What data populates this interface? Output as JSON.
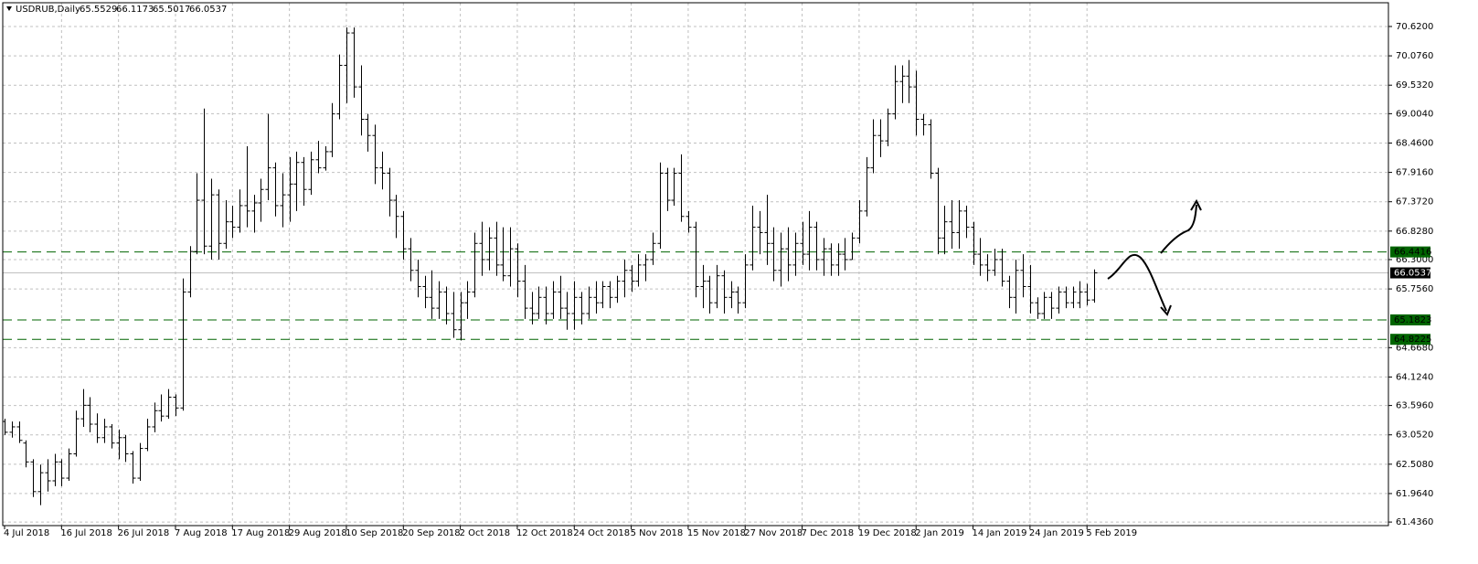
{
  "chart_data": {
    "type": "ohlc",
    "symbol": "USDRUB,Daily",
    "color": "#000000",
    "grid": true,
    "grid_color": "#c0c0c0",
    "hline_color": "#006400",
    "hlines": [
      66.4416,
      65.1823,
      64.8225
    ],
    "ylim": [
      61.37,
      71.06
    ],
    "yticks": [
      {
        "value": 70.62,
        "label": "70.6200"
      },
      {
        "value": 70.076,
        "label": "70.0760"
      },
      {
        "value": 69.532,
        "label": "69.5320"
      },
      {
        "value": 69.004,
        "label": "69.0040"
      },
      {
        "value": 68.46,
        "label": "68.4600"
      },
      {
        "value": 67.916,
        "label": "67.9160"
      },
      {
        "value": 67.372,
        "label": "67.3720"
      },
      {
        "value": 66.828,
        "label": "66.8280"
      },
      {
        "value": 66.3,
        "label": "66.3000"
      },
      {
        "value": 65.756,
        "label": "65.7560"
      },
      {
        "value": 64.668,
        "label": "64.6680"
      },
      {
        "value": 64.124,
        "label": "64.1240"
      },
      {
        "value": 63.596,
        "label": "63.5960"
      },
      {
        "value": 63.052,
        "label": "63.0520"
      },
      {
        "value": 62.508,
        "label": "62.5080"
      },
      {
        "value": 61.964,
        "label": "61.9640"
      },
      {
        "value": 61.436,
        "label": "61.4360"
      }
    ],
    "categories": [
      "4 Jul 2018",
      null,
      null,
      null,
      null,
      null,
      null,
      null,
      "16 Jul 2018",
      null,
      null,
      null,
      null,
      null,
      null,
      null,
      "26 Jul 2018",
      null,
      null,
      null,
      null,
      null,
      null,
      null,
      "7 Aug 2018",
      null,
      null,
      null,
      null,
      null,
      null,
      null,
      "17 Aug 2018",
      null,
      null,
      null,
      null,
      null,
      null,
      null,
      "29 Aug 2018",
      null,
      null,
      null,
      null,
      null,
      null,
      null,
      "10 Sep 2018",
      null,
      null,
      null,
      null,
      null,
      null,
      null,
      "20 Sep 2018",
      null,
      null,
      null,
      null,
      null,
      null,
      null,
      "2 Oct 2018",
      null,
      null,
      null,
      null,
      null,
      null,
      null,
      "12 Oct 2018",
      null,
      null,
      null,
      null,
      null,
      null,
      null,
      "24 Oct 2018",
      null,
      null,
      null,
      null,
      null,
      null,
      null,
      "5 Nov 2018",
      null,
      null,
      null,
      null,
      null,
      null,
      null,
      "15 Nov 2018",
      null,
      null,
      null,
      null,
      null,
      null,
      null,
      "27 Nov 2018",
      null,
      null,
      null,
      null,
      null,
      null,
      null,
      "7 Dec 2018",
      null,
      null,
      null,
      null,
      null,
      null,
      null,
      "19 Dec 2018",
      null,
      null,
      null,
      null,
      null,
      null,
      null,
      "2 Jan 2019",
      null,
      null,
      null,
      null,
      null,
      null,
      null,
      "14 Jan 2019",
      null,
      null,
      null,
      null,
      null,
      null,
      null,
      "24 Jan 2019",
      null,
      null,
      null,
      null,
      null,
      null,
      null,
      "5 Feb 2019",
      null
    ],
    "ohlc": [
      [
        63.3,
        63.35,
        63.05,
        63.1
      ],
      [
        63.1,
        63.3,
        63.0,
        63.2
      ],
      [
        63.2,
        63.3,
        62.9,
        62.95
      ],
      [
        62.9,
        62.95,
        62.45,
        62.55
      ],
      [
        62.55,
        62.6,
        61.9,
        62.0
      ],
      [
        62.0,
        62.5,
        61.75,
        62.35
      ],
      [
        62.35,
        62.6,
        62.0,
        62.2
      ],
      [
        62.2,
        62.7,
        62.1,
        62.55
      ],
      [
        62.55,
        62.6,
        62.1,
        62.25
      ],
      [
        62.25,
        62.8,
        62.2,
        62.7
      ],
      [
        62.7,
        63.5,
        62.65,
        63.35
      ],
      [
        63.35,
        63.9,
        63.2,
        63.6
      ],
      [
        63.6,
        63.75,
        63.1,
        63.25
      ],
      [
        63.25,
        63.45,
        62.9,
        63.0
      ],
      [
        63.0,
        63.35,
        62.9,
        63.2
      ],
      [
        63.2,
        63.25,
        62.8,
        62.9
      ],
      [
        62.9,
        63.15,
        62.6,
        63.0
      ],
      [
        63.0,
        63.05,
        62.55,
        62.7
      ],
      [
        62.7,
        62.75,
        62.15,
        62.25
      ],
      [
        62.25,
        62.9,
        62.2,
        62.8
      ],
      [
        62.8,
        63.35,
        62.75,
        63.2
      ],
      [
        63.2,
        63.65,
        63.1,
        63.5
      ],
      [
        63.5,
        63.8,
        63.3,
        63.4
      ],
      [
        63.4,
        63.9,
        63.35,
        63.75
      ],
      [
        63.75,
        63.8,
        63.4,
        63.55
      ],
      [
        63.55,
        65.95,
        63.5,
        65.7
      ],
      [
        65.7,
        66.55,
        65.6,
        66.45
      ],
      [
        66.45,
        67.9,
        66.4,
        67.4
      ],
      [
        67.4,
        69.1,
        66.4,
        66.55
      ],
      [
        66.55,
        67.8,
        66.3,
        67.5
      ],
      [
        67.5,
        67.6,
        66.3,
        66.6
      ],
      [
        66.6,
        67.4,
        66.5,
        67.0
      ],
      [
        67.0,
        67.3,
        66.7,
        66.9
      ],
      [
        66.9,
        67.6,
        66.8,
        67.3
      ],
      [
        67.3,
        68.4,
        66.9,
        67.2
      ],
      [
        67.2,
        67.5,
        66.8,
        67.35
      ],
      [
        67.35,
        67.8,
        67.0,
        67.6
      ],
      [
        67.6,
        69.0,
        67.4,
        68.0
      ],
      [
        68.0,
        68.1,
        67.1,
        67.3
      ],
      [
        67.3,
        67.9,
        66.9,
        67.5
      ],
      [
        67.5,
        68.2,
        67.0,
        67.7
      ],
      [
        67.7,
        68.3,
        67.2,
        68.1
      ],
      [
        68.1,
        68.2,
        67.3,
        67.6
      ],
      [
        67.6,
        68.3,
        67.5,
        68.15
      ],
      [
        68.15,
        68.5,
        67.9,
        68.0
      ],
      [
        68.0,
        68.4,
        67.95,
        68.3
      ],
      [
        68.3,
        69.2,
        68.2,
        69.0
      ],
      [
        69.0,
        70.1,
        68.9,
        69.9
      ],
      [
        69.9,
        70.6,
        69.2,
        70.5
      ],
      [
        70.5,
        70.6,
        69.3,
        69.5
      ],
      [
        69.5,
        69.9,
        68.6,
        68.9
      ],
      [
        68.9,
        69.0,
        68.3,
        68.6
      ],
      [
        68.6,
        68.8,
        67.7,
        68.0
      ],
      [
        68.0,
        68.3,
        67.6,
        67.9
      ],
      [
        67.9,
        68.0,
        67.1,
        67.4
      ],
      [
        67.4,
        67.5,
        66.7,
        67.1
      ],
      [
        67.1,
        67.2,
        66.3,
        66.5
      ],
      [
        66.5,
        66.7,
        65.9,
        66.1
      ],
      [
        66.1,
        66.3,
        65.6,
        65.8
      ],
      [
        65.8,
        66.0,
        65.4,
        65.6
      ],
      [
        65.6,
        66.1,
        65.2,
        65.4
      ],
      [
        65.4,
        65.9,
        65.2,
        65.7
      ],
      [
        65.7,
        65.8,
        65.1,
        65.3
      ],
      [
        65.3,
        65.7,
        64.85,
        65.0
      ],
      [
        65.0,
        65.7,
        64.8,
        65.5
      ],
      [
        65.5,
        65.9,
        65.2,
        65.7
      ],
      [
        65.7,
        66.8,
        65.6,
        66.6
      ],
      [
        66.6,
        67.0,
        66.0,
        66.3
      ],
      [
        66.3,
        66.9,
        66.1,
        66.7
      ],
      [
        66.7,
        67.0,
        66.0,
        66.2
      ],
      [
        66.2,
        66.9,
        65.9,
        66.0
      ],
      [
        66.0,
        66.9,
        65.8,
        66.5
      ],
      [
        66.5,
        66.6,
        65.6,
        65.9
      ],
      [
        65.9,
        66.2,
        65.2,
        65.4
      ],
      [
        65.4,
        65.7,
        65.1,
        65.3
      ],
      [
        65.3,
        65.8,
        65.2,
        65.6
      ],
      [
        65.6,
        65.8,
        65.1,
        65.3
      ],
      [
        65.3,
        65.9,
        65.2,
        65.7
      ],
      [
        65.7,
        66.0,
        65.2,
        65.4
      ],
      [
        65.4,
        65.7,
        65.0,
        65.3
      ],
      [
        65.3,
        65.9,
        65.0,
        65.6
      ],
      [
        65.6,
        65.7,
        65.1,
        65.3
      ],
      [
        65.3,
        65.8,
        65.2,
        65.6
      ],
      [
        65.6,
        65.9,
        65.3,
        65.5
      ],
      [
        65.5,
        65.9,
        65.4,
        65.8
      ],
      [
        65.8,
        65.9,
        65.4,
        65.6
      ],
      [
        65.6,
        66.0,
        65.5,
        65.9
      ],
      [
        65.9,
        66.3,
        65.6,
        66.1
      ],
      [
        66.1,
        66.2,
        65.7,
        65.9
      ],
      [
        65.9,
        66.4,
        65.8,
        66.2
      ],
      [
        66.2,
        66.4,
        65.9,
        66.3
      ],
      [
        66.3,
        66.8,
        66.2,
        66.6
      ],
      [
        66.6,
        68.1,
        66.5,
        67.9
      ],
      [
        67.9,
        68.0,
        67.2,
        67.4
      ],
      [
        67.4,
        68.0,
        67.3,
        67.9
      ],
      [
        67.9,
        68.25,
        67.0,
        67.1
      ],
      [
        67.1,
        67.2,
        66.8,
        66.9
      ],
      [
        66.9,
        67.0,
        65.6,
        65.8
      ],
      [
        65.8,
        66.2,
        65.4,
        65.9
      ],
      [
        65.9,
        66.0,
        65.3,
        65.5
      ],
      [
        65.5,
        66.2,
        65.4,
        66.0
      ],
      [
        66.0,
        66.1,
        65.3,
        65.6
      ],
      [
        65.6,
        65.9,
        65.4,
        65.7
      ],
      [
        65.7,
        65.8,
        65.3,
        65.5
      ],
      [
        65.5,
        66.4,
        65.4,
        66.2
      ],
      [
        66.2,
        67.3,
        66.1,
        66.9
      ],
      [
        66.9,
        67.2,
        66.4,
        66.8
      ],
      [
        66.8,
        67.5,
        66.2,
        66.6
      ],
      [
        66.6,
        66.9,
        65.9,
        66.1
      ],
      [
        66.1,
        66.8,
        65.8,
        66.5
      ],
      [
        66.5,
        66.9,
        65.9,
        66.2
      ],
      [
        66.2,
        66.8,
        66.0,
        66.6
      ],
      [
        66.6,
        67.0,
        66.2,
        66.4
      ],
      [
        66.4,
        67.2,
        66.1,
        66.9
      ],
      [
        66.9,
        67.0,
        66.1,
        66.3
      ],
      [
        66.3,
        66.7,
        66.0,
        66.5
      ],
      [
        66.5,
        66.6,
        66.0,
        66.2
      ],
      [
        66.2,
        66.6,
        66.0,
        66.4
      ],
      [
        66.4,
        66.7,
        66.1,
        66.3
      ],
      [
        66.3,
        66.8,
        66.3,
        66.7
      ],
      [
        66.7,
        67.4,
        66.6,
        67.2
      ],
      [
        67.2,
        68.2,
        67.1,
        68.0
      ],
      [
        68.0,
        68.9,
        67.9,
        68.6
      ],
      [
        68.6,
        68.9,
        68.2,
        68.5
      ],
      [
        68.5,
        69.1,
        68.4,
        69.0
      ],
      [
        69.0,
        69.9,
        68.9,
        69.6
      ],
      [
        69.6,
        69.9,
        69.2,
        69.7
      ],
      [
        69.7,
        70.0,
        69.2,
        69.5
      ],
      [
        69.5,
        69.8,
        68.6,
        68.9
      ],
      [
        68.9,
        69.0,
        68.6,
        68.8
      ],
      [
        68.8,
        68.9,
        67.8,
        67.9
      ],
      [
        67.9,
        68.0,
        66.4,
        66.7
      ],
      [
        66.7,
        67.3,
        66.4,
        67.0
      ],
      [
        67.0,
        67.4,
        66.5,
        66.8
      ],
      [
        66.8,
        67.4,
        66.5,
        67.2
      ],
      [
        67.2,
        67.3,
        66.7,
        66.9
      ],
      [
        66.9,
        67.0,
        66.2,
        66.4
      ],
      [
        66.4,
        66.7,
        66.0,
        66.2
      ],
      [
        66.2,
        66.4,
        65.9,
        66.1
      ],
      [
        66.1,
        66.5,
        66.0,
        66.3
      ],
      [
        66.3,
        66.5,
        65.8,
        65.9
      ],
      [
        65.9,
        66.0,
        65.4,
        65.6
      ],
      [
        65.6,
        66.3,
        65.3,
        66.1
      ],
      [
        66.1,
        66.4,
        65.6,
        65.8
      ],
      [
        65.8,
        66.2,
        65.3,
        65.5
      ],
      [
        65.5,
        65.6,
        65.2,
        65.3
      ],
      [
        65.3,
        65.7,
        65.2,
        65.6
      ],
      [
        65.6,
        65.7,
        65.2,
        65.4
      ],
      [
        65.4,
        65.8,
        65.3,
        65.7
      ],
      [
        65.7,
        65.8,
        65.4,
        65.5
      ],
      [
        65.5,
        65.8,
        65.4,
        65.7
      ],
      [
        65.5,
        65.9,
        65.4,
        65.7
      ],
      [
        65.7,
        65.85,
        65.45,
        65.55
      ],
      [
        65.5529,
        66.1173,
        65.5017,
        66.0537
      ]
    ]
  }
}
